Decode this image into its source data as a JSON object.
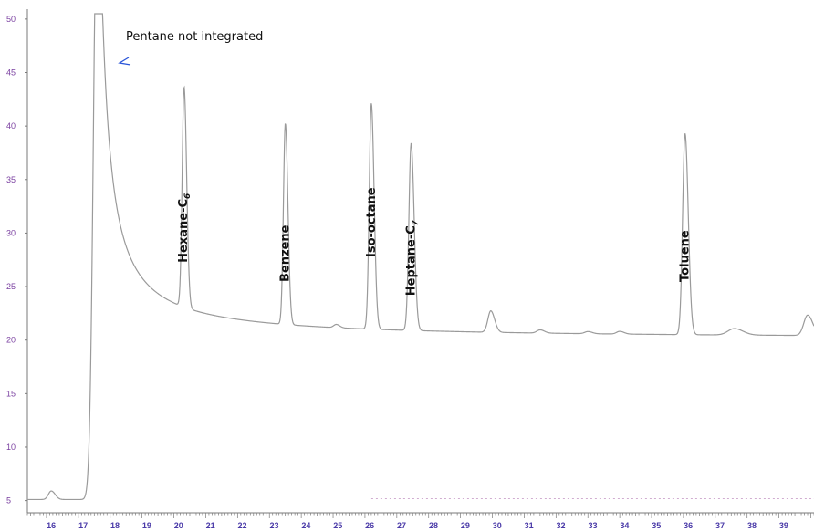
{
  "colors": {
    "trace": "#9a9a9a",
    "axis": "#7a7a7a",
    "baseline_dash": "#c9a0c9",
    "y_tick_text": "#7a3fa0",
    "x_tick_text": "#4a3aa8",
    "marker": "#2a55d8"
  },
  "chart_data": {
    "type": "line",
    "title": "",
    "xlabel": "",
    "ylabel": "",
    "xlim": [
      15.4,
      40.1
    ],
    "ylim": [
      4.2,
      50.5
    ],
    "x_ticks": [
      "16",
      "17",
      "18",
      "19",
      "20",
      "21",
      "22",
      "23",
      "24",
      "25",
      "26",
      "27",
      "28",
      "29",
      "30",
      "31",
      "32",
      "33",
      "34",
      "35",
      "36",
      "37",
      "38",
      "39"
    ],
    "y_ticks": [
      "5",
      "10",
      "15",
      "20",
      "25",
      "30",
      "35",
      "40",
      "45",
      "50"
    ],
    "baseline": 5.1,
    "peaks": [
      {
        "x": 16.15,
        "height": 0.8,
        "width": 0.09
      },
      {
        "x": 17.6,
        "height": 60,
        "width": 0.12,
        "tail": 0.6
      },
      {
        "x": 20.32,
        "height": 20.6,
        "width": 0.06
      },
      {
        "x": 23.5,
        "height": 18.8,
        "width": 0.06
      },
      {
        "x": 25.1,
        "height": 0.3,
        "width": 0.08
      },
      {
        "x": 26.2,
        "height": 21.1,
        "width": 0.065
      },
      {
        "x": 27.45,
        "height": 17.5,
        "width": 0.07
      },
      {
        "x": 29.95,
        "height": 2.0,
        "width": 0.09
      },
      {
        "x": 31.5,
        "height": 0.3,
        "width": 0.1
      },
      {
        "x": 33.0,
        "height": 0.2,
        "width": 0.1
      },
      {
        "x": 34.0,
        "height": 0.25,
        "width": 0.1
      },
      {
        "x": 36.05,
        "height": 18.8,
        "width": 0.075
      },
      {
        "x": 37.6,
        "height": 0.6,
        "width": 0.2
      },
      {
        "x": 39.9,
        "height": 1.9,
        "width": 0.12
      }
    ],
    "annotations": {
      "pentane_note": "Pentane not integrated",
      "labels": [
        {
          "text": "Hexane-C",
          "sub": "6",
          "x": 20.3
        },
        {
          "text": "Benzene",
          "sub": "",
          "x": 23.5
        },
        {
          "text": "Iso-octane",
          "sub": "",
          "x": 26.2
        },
        {
          "text": "Heptane-C",
          "sub": "7",
          "x": 27.45
        },
        {
          "text": "Toluene",
          "sub": "",
          "x": 36.05
        }
      ]
    }
  }
}
